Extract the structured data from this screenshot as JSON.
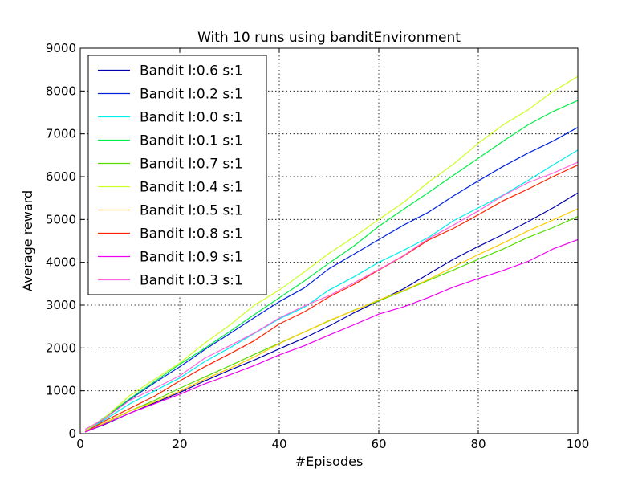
{
  "chart_data": {
    "type": "line",
    "title": "With 10 runs using banditEnvironment",
    "xlabel": "#Episodes",
    "ylabel": "Average reward",
    "xlim": [
      0,
      100
    ],
    "ylim": [
      0,
      9000
    ],
    "xticks": [
      0,
      20,
      40,
      60,
      80,
      100
    ],
    "yticks": [
      0,
      1000,
      2000,
      3000,
      4000,
      5000,
      6000,
      7000,
      8000,
      9000
    ],
    "grid": true,
    "legend_position": "top-left",
    "x": [
      1,
      5,
      10,
      15,
      20,
      25,
      30,
      35,
      40,
      45,
      50,
      55,
      60,
      65,
      70,
      75,
      80,
      85,
      90,
      95,
      100
    ],
    "series": [
      {
        "name": "Bandit l:0.6 s:1",
        "color": "#0000aa",
        "values": [
          40,
          220,
          480,
          720,
          960,
          1230,
          1480,
          1720,
          1980,
          2230,
          2510,
          2820,
          3100,
          3380,
          3730,
          4070,
          4370,
          4650,
          4950,
          5270,
          5620
        ]
      },
      {
        "name": "Bandit l:0.2 s:1",
        "color": "#0022dd",
        "values": [
          60,
          360,
          800,
          1190,
          1560,
          1960,
          2330,
          2710,
          3080,
          3400,
          3850,
          4190,
          4530,
          4870,
          5170,
          5550,
          5900,
          6240,
          6550,
          6830,
          7150
        ]
      },
      {
        "name": "Bandit l:0.0 s:1",
        "color": "#00eeee",
        "values": [
          60,
          330,
          700,
          1000,
          1300,
          1680,
          2000,
          2340,
          2680,
          2950,
          3350,
          3660,
          4000,
          4280,
          4580,
          4970,
          5270,
          5570,
          5910,
          6270,
          6620
        ]
      },
      {
        "name": "Bandit l:0.1 s:1",
        "color": "#00ee44",
        "values": [
          60,
          390,
          820,
          1220,
          1620,
          1990,
          2380,
          2780,
          3170,
          3560,
          3980,
          4380,
          4840,
          5240,
          5630,
          6030,
          6430,
          6830,
          7210,
          7520,
          7780
        ]
      },
      {
        "name": "Bandit l:0.7 s:1",
        "color": "#55dd00",
        "values": [
          40,
          250,
          530,
          780,
          1060,
          1320,
          1580,
          1850,
          2110,
          2370,
          2630,
          2880,
          3100,
          3330,
          3580,
          3820,
          4070,
          4310,
          4580,
          4810,
          5070
        ]
      },
      {
        "name": "Bandit l:0.4 s:1",
        "color": "#ccff22",
        "values": [
          60,
          380,
          890,
          1270,
          1650,
          2110,
          2530,
          3000,
          3350,
          3770,
          4210,
          4590,
          5000,
          5400,
          5870,
          6290,
          6780,
          7210,
          7560,
          7990,
          8340
        ]
      },
      {
        "name": "Bandit l:0.5 s:1",
        "color": "#ffcc00",
        "values": [
          40,
          260,
          530,
          740,
          990,
          1270,
          1520,
          1790,
          2100,
          2370,
          2640,
          2870,
          3120,
          3340,
          3600,
          3890,
          4180,
          4450,
          4730,
          4990,
          5250
        ]
      },
      {
        "name": "Bandit l:0.8 s:1",
        "color": "#ff2200",
        "values": [
          40,
          300,
          590,
          880,
          1230,
          1560,
          1860,
          2170,
          2560,
          2840,
          3190,
          3480,
          3820,
          4150,
          4520,
          4790,
          5110,
          5440,
          5710,
          6000,
          6270
        ]
      },
      {
        "name": "Bandit l:0.9 s:1",
        "color": "#ee00ee",
        "values": [
          40,
          230,
          480,
          700,
          920,
          1160,
          1370,
          1590,
          1840,
          2050,
          2300,
          2540,
          2790,
          2960,
          3180,
          3420,
          3620,
          3810,
          4020,
          4310,
          4530
        ]
      },
      {
        "name": "Bandit l:0.3 s:1",
        "color": "#ff66dd",
        "values": [
          100,
          360,
          780,
          1060,
          1350,
          1760,
          2050,
          2350,
          2700,
          2980,
          3220,
          3520,
          3830,
          4160,
          4550,
          4870,
          5200,
          5560,
          5860,
          6080,
          6340
        ]
      }
    ]
  }
}
